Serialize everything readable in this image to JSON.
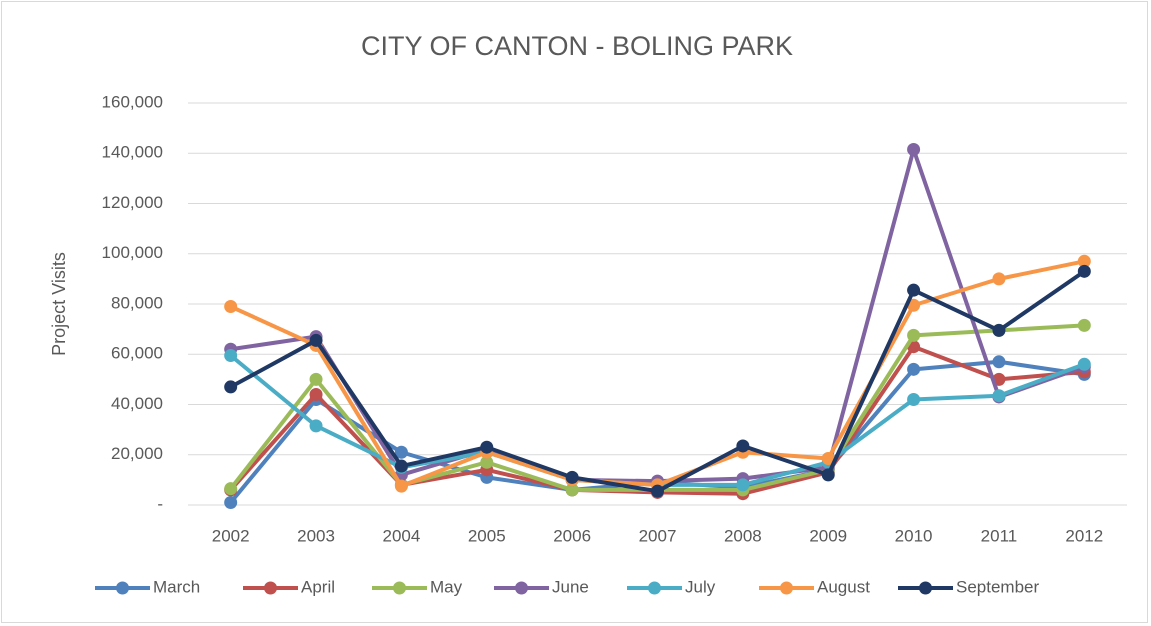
{
  "chart_data": {
    "type": "line",
    "title": "CITY OF CANTON - BOLING PARK",
    "y_label": "Project Visits",
    "categories": [
      "2002",
      "2003",
      "2004",
      "2005",
      "2006",
      "2007",
      "2008",
      "2009",
      "2010",
      "2011",
      "2012"
    ],
    "series": [
      {
        "name": "March",
        "color": "#4f81bd",
        "values": [
          1000,
          42000,
          21000,
          11000,
          6000,
          9000,
          7000,
          14000,
          54000,
          57000,
          52000
        ]
      },
      {
        "name": "April",
        "color": "#c0504d",
        "values": [
          6000,
          44000,
          8000,
          14000,
          6000,
          5000,
          4500,
          13000,
          63000,
          50000,
          53000
        ]
      },
      {
        "name": "May",
        "color": "#9bbb59",
        "values": [
          6500,
          50000,
          8000,
          17000,
          6000,
          6000,
          6000,
          14000,
          67500,
          69500,
          71500
        ]
      },
      {
        "name": "June",
        "color": "#8064a2",
        "values": [
          62000,
          67000,
          12000,
          22000,
          10000,
          9500,
          10500,
          15000,
          141500,
          43000,
          55000
        ]
      },
      {
        "name": "July",
        "color": "#4bacc6",
        "values": [
          59500,
          31500,
          15000,
          21000,
          10000,
          8000,
          8000,
          17000,
          42000,
          43500,
          56000
        ]
      },
      {
        "name": "August",
        "color": "#f79646",
        "values": [
          79000,
          63500,
          7500,
          21000,
          10000,
          8000,
          21000,
          18500,
          79500,
          90000,
          97000
        ]
      },
      {
        "name": "September",
        "color": "#1f3864",
        "values": [
          47000,
          65500,
          15500,
          23000,
          11000,
          5500,
          23500,
          12000,
          85500,
          69500,
          93000
        ]
      }
    ],
    "ylim": [
      0,
      160000
    ],
    "yticks": [
      {
        "value": 0,
        "label": "-"
      },
      {
        "value": 20000,
        "label": "20,000"
      },
      {
        "value": 40000,
        "label": "40,000"
      },
      {
        "value": 60000,
        "label": "60,000"
      },
      {
        "value": 80000,
        "label": "80,000"
      },
      {
        "value": 100000,
        "label": "100,000"
      },
      {
        "value": 120000,
        "label": "120,000"
      },
      {
        "value": 140000,
        "label": "140,000"
      },
      {
        "value": 160000,
        "label": "160,000"
      }
    ],
    "grid": true,
    "legend": "bottom"
  }
}
